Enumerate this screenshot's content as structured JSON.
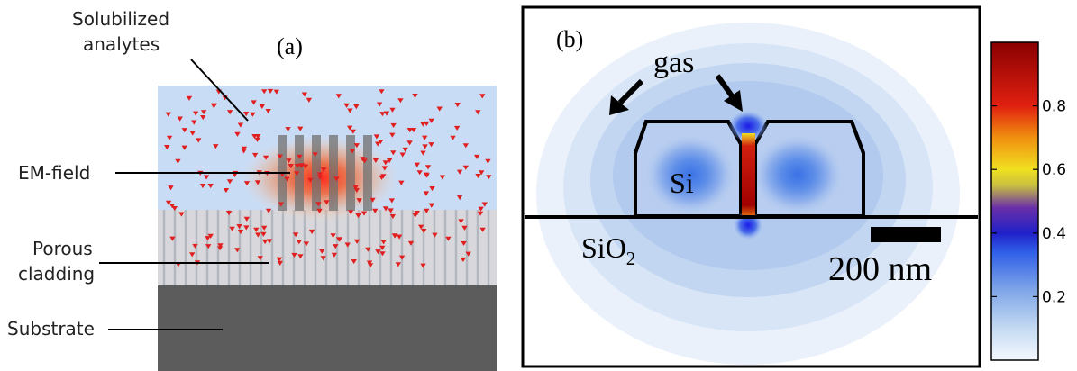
{
  "panel_a": {
    "label": "(a)",
    "callouts": {
      "analytes_line1": "Solubilized",
      "analytes_line2": "analytes",
      "em_field": "EM-field",
      "porous_line1": "Porous",
      "porous_line2": "cladding",
      "substrate": "Substrate"
    },
    "colors": {
      "solution": "#c8dcf5",
      "cladding": "#d4d4d4",
      "pore_lines": "#b3b7bf",
      "substrate": "#5c5c5c",
      "analyte": "#e02020",
      "waveguide_bars": "#707070",
      "field_core": "#ff3a1a"
    }
  },
  "panel_b": {
    "label": "(b)",
    "gas_label": "gas",
    "si_label": "Si",
    "sio2_label": "SiO",
    "sio2_subscript": "2",
    "scale_bar_label": "200 nm",
    "colorbar_ticks": [
      "0.2",
      "0.4",
      "0.6",
      "0.8"
    ]
  }
}
